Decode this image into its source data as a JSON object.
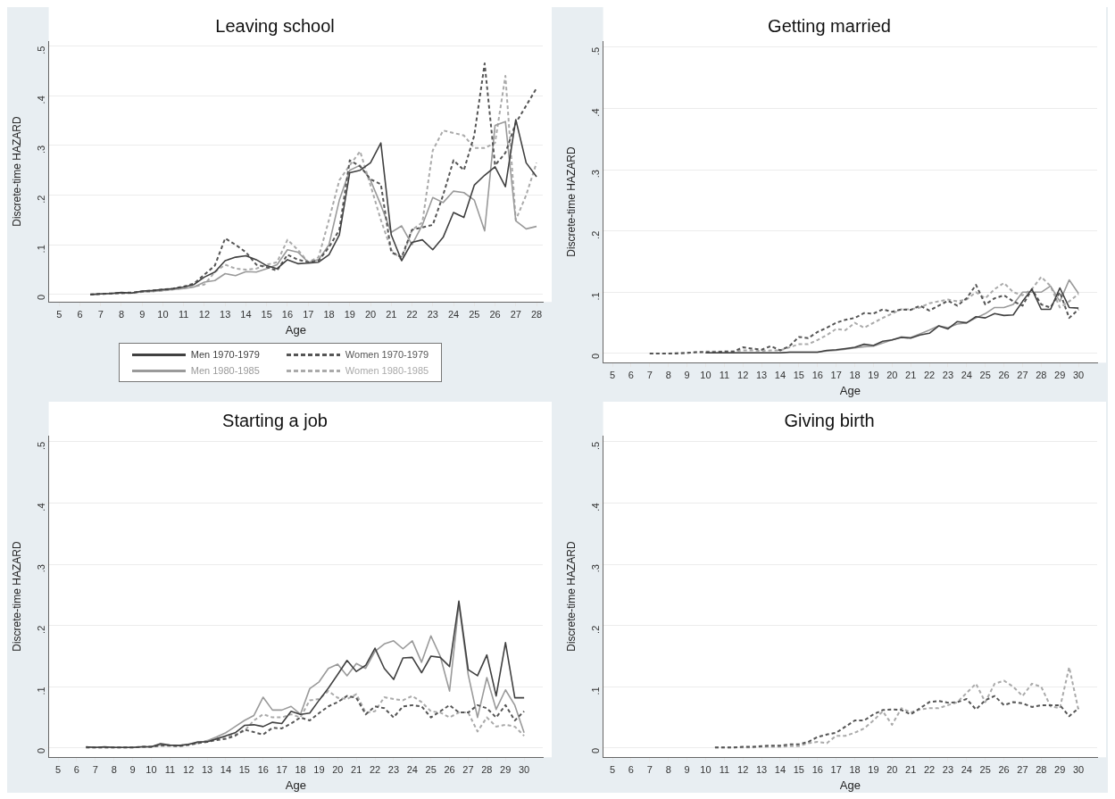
{
  "chart_data": [
    {
      "type": "line",
      "title": "Leaving school",
      "xlabel": "Age",
      "ylabel": "Discrete-time HAZARD",
      "xlim": [
        4.5,
        28.3
      ],
      "xticks": [
        5,
        6,
        7,
        8,
        9,
        10,
        11,
        12,
        13,
        14,
        15,
        16,
        17,
        18,
        19,
        20,
        21,
        22,
        23,
        24,
        25,
        26,
        27,
        28
      ],
      "ylim": [
        -0.015,
        0.51
      ],
      "yticks": [
        {
          "value": 0,
          "label": "0"
        },
        {
          "value": 0.1,
          "label": ".1"
        },
        {
          "value": 0.2,
          "label": ".2"
        },
        {
          "value": 0.3,
          "label": ".3"
        },
        {
          "value": 0.4,
          "label": ".4"
        },
        {
          "value": 0.5,
          "label": ".5"
        }
      ],
      "grid": "y",
      "legend": "bottom",
      "x": [
        6.5,
        7,
        7.5,
        8,
        8.5,
        9,
        9.5,
        10,
        10.5,
        11,
        11.5,
        12,
        12.5,
        13,
        13.5,
        14,
        14.5,
        15,
        15.5,
        16,
        16.5,
        17,
        17.5,
        18,
        18.5,
        19,
        19.5,
        20,
        20.5,
        21,
        21.5,
        22,
        22.5,
        23,
        23.5,
        24,
        24.5,
        25,
        25.5,
        26,
        26.5,
        27,
        27.5,
        28
      ],
      "series": [
        {
          "name": "Men 1970-1979",
          "color": "#404040",
          "line_style": "solid",
          "values": [
            0,
            0.001,
            0.002,
            0.004,
            0.003,
            0.007,
            0.008,
            0.01,
            0.012,
            0.015,
            0.02,
            0.035,
            0.045,
            0.068,
            0.075,
            0.078,
            0.07,
            0.058,
            0.052,
            0.07,
            0.062,
            0.063,
            0.065,
            0.08,
            0.12,
            0.245,
            0.25,
            0.265,
            0.305,
            0.12,
            0.068,
            0.105,
            0.11,
            0.09,
            0.115,
            0.165,
            0.155,
            0.22,
            0.24,
            0.257,
            0.217,
            0.352,
            0.265,
            0.237
          ]
        },
        {
          "name": "Women 1970-1979",
          "color": "#555555",
          "line_style": "dashed",
          "values": [
            0,
            0.001,
            0.002,
            0.003,
            0.004,
            0.006,
            0.008,
            0.01,
            0.012,
            0.016,
            0.022,
            0.04,
            0.058,
            0.113,
            0.1,
            0.085,
            0.06,
            0.055,
            0.048,
            0.08,
            0.07,
            0.065,
            0.068,
            0.095,
            0.13,
            0.27,
            0.258,
            0.232,
            0.222,
            0.085,
            0.075,
            0.13,
            0.135,
            0.14,
            0.2,
            0.27,
            0.25,
            0.32,
            0.465,
            0.26,
            0.285,
            0.345,
            0.38,
            0.415
          ]
        },
        {
          "name": "Men 1980-1985",
          "color": "#9a9a9a",
          "line_style": "solid",
          "values": [
            0,
            0.001,
            0.002,
            0.003,
            0.003,
            0.005,
            0.006,
            0.008,
            0.01,
            0.012,
            0.015,
            0.025,
            0.028,
            0.042,
            0.038,
            0.046,
            0.045,
            0.052,
            0.06,
            0.09,
            0.085,
            0.065,
            0.07,
            0.1,
            0.19,
            0.25,
            0.26,
            0.23,
            0.18,
            0.125,
            0.138,
            0.1,
            0.14,
            0.195,
            0.185,
            0.208,
            0.205,
            0.19,
            0.128,
            0.34,
            0.348,
            0.148,
            0.132,
            0.137
          ]
        },
        {
          "name": "Women 1980-1985",
          "color": "#aaaaaa",
          "line_style": "dashed",
          "values": [
            0,
            0.001,
            0.002,
            0.002,
            0.003,
            0.005,
            0.006,
            0.008,
            0.01,
            0.013,
            0.016,
            0.02,
            0.045,
            0.06,
            0.052,
            0.05,
            0.052,
            0.06,
            0.065,
            0.11,
            0.09,
            0.065,
            0.075,
            0.15,
            0.23,
            0.26,
            0.288,
            0.22,
            0.15,
            0.09,
            0.07,
            0.13,
            0.145,
            0.29,
            0.33,
            0.325,
            0.32,
            0.295,
            0.295,
            0.305,
            0.44,
            0.15,
            0.2,
            0.265
          ]
        }
      ]
    },
    {
      "type": "line",
      "title": "Getting married",
      "xlabel": "Age",
      "ylabel": "Discrete-time HAZARD",
      "xlim": [
        4.5,
        31
      ],
      "xticks": [
        5,
        6,
        7,
        8,
        9,
        10,
        11,
        12,
        13,
        14,
        15,
        16,
        17,
        18,
        19,
        20,
        21,
        22,
        23,
        24,
        25,
        26,
        27,
        28,
        29,
        30
      ],
      "ylim": [
        -0.015,
        0.51
      ],
      "yticks": [
        {
          "value": 0,
          "label": "0"
        },
        {
          "value": 0.1,
          "label": ".1"
        },
        {
          "value": 0.2,
          "label": ".2"
        },
        {
          "value": 0.3,
          "label": ".3"
        },
        {
          "value": 0.4,
          "label": ".4"
        },
        {
          "value": 0.5,
          "label": ".5"
        }
      ],
      "grid": "y",
      "x": [
        7,
        7.5,
        8,
        8.5,
        9,
        9.5,
        10,
        10.5,
        11,
        11.5,
        12,
        12.5,
        13,
        13.5,
        14,
        14.5,
        15,
        15.5,
        16,
        16.5,
        17,
        17.5,
        18,
        18.5,
        19,
        19.5,
        20,
        20.5,
        21,
        21.5,
        22,
        22.5,
        23,
        23.5,
        24,
        24.5,
        25,
        25.5,
        26,
        26.5,
        27,
        27.5,
        28,
        28.5,
        29,
        29.5,
        30
      ],
      "series": [
        {
          "color": "#404040",
          "line_style": "solid",
          "values": [
            null,
            null,
            null,
            null,
            null,
            null,
            0.001,
            0.001,
            0.001,
            0.001,
            0.001,
            0.001,
            0.001,
            0.001,
            0.001,
            0.002,
            0.002,
            0.002,
            0.002,
            0.005,
            0.006,
            0.008,
            0.01,
            0.015,
            0.013,
            0.02,
            0.022,
            0.026,
            0.025,
            0.03,
            0.033,
            0.045,
            0.04,
            0.052,
            0.05,
            0.06,
            0.058,
            0.065,
            0.062,
            0.063,
            0.085,
            0.105,
            0.072,
            0.072,
            0.107,
            0.075,
            0.074
          ]
        },
        {
          "color": "#555555",
          "line_style": "dashed",
          "values": [
            0,
            0,
            0,
            0,
            0.001,
            0.002,
            0.002,
            0.002,
            0.003,
            0.003,
            0.01,
            0.008,
            0.006,
            0.012,
            0.005,
            0.012,
            0.027,
            0.025,
            0.035,
            0.042,
            0.05,
            0.055,
            0.058,
            0.066,
            0.065,
            0.072,
            0.068,
            0.072,
            0.071,
            0.078,
            0.07,
            0.078,
            0.086,
            0.078,
            0.09,
            0.112,
            0.08,
            0.09,
            0.095,
            0.085,
            0.078,
            0.105,
            0.08,
            0.075,
            0.1,
            0.058,
            0.072
          ]
        },
        {
          "color": "#9a9a9a",
          "line_style": "solid",
          "values": [
            null,
            null,
            null,
            null,
            null,
            null,
            0.001,
            0.001,
            0.001,
            0.001,
            0.001,
            0.001,
            0.001,
            0.001,
            0.001,
            0.002,
            0.002,
            0.002,
            0.002,
            0.004,
            0.005,
            0.007,
            0.009,
            0.011,
            0.012,
            0.017,
            0.022,
            0.027,
            0.026,
            0.032,
            0.038,
            0.045,
            0.042,
            0.048,
            0.05,
            0.058,
            0.065,
            0.075,
            0.075,
            0.08,
            0.1,
            0.1,
            0.1,
            0.11,
            0.085,
            0.12,
            0.098
          ]
        },
        {
          "color": "#aaaaaa",
          "line_style": "dashed",
          "values": [
            0,
            0,
            0,
            0.001,
            0.001,
            0.002,
            0.003,
            0.003,
            0.003,
            0.003,
            0.005,
            0.005,
            0.004,
            0.005,
            0.005,
            0.01,
            0.015,
            0.015,
            0.022,
            0.03,
            0.04,
            0.038,
            0.05,
            0.042,
            0.05,
            0.058,
            0.065,
            0.072,
            0.072,
            0.075,
            0.082,
            0.085,
            0.088,
            0.085,
            0.088,
            0.1,
            0.09,
            0.105,
            0.115,
            0.1,
            0.095,
            0.105,
            0.125,
            0.11,
            0.075,
            0.085,
            0.097
          ]
        }
      ]
    },
    {
      "type": "line",
      "title": "Starting a job",
      "xlabel": "Age",
      "ylabel": "Discrete-time HAZARD",
      "xlim": [
        4.5,
        31
      ],
      "xticks": [
        5,
        6,
        7,
        8,
        9,
        10,
        11,
        12,
        13,
        14,
        15,
        16,
        17,
        18,
        19,
        20,
        21,
        22,
        23,
        24,
        25,
        26,
        27,
        28,
        29,
        30
      ],
      "ylim": [
        -0.015,
        0.51
      ],
      "yticks": [
        {
          "value": 0,
          "label": "0"
        },
        {
          "value": 0.1,
          "label": ".1"
        },
        {
          "value": 0.2,
          "label": ".2"
        },
        {
          "value": 0.3,
          "label": ".3"
        },
        {
          "value": 0.4,
          "label": ".4"
        },
        {
          "value": 0.5,
          "label": ".5"
        }
      ],
      "grid": "y",
      "x": [
        6.5,
        7,
        7.5,
        8,
        8.5,
        9,
        9.5,
        10,
        10.5,
        11,
        11.5,
        12,
        12.5,
        13,
        13.5,
        14,
        14.5,
        15,
        15.5,
        16,
        16.5,
        17,
        17.5,
        18,
        18.5,
        19,
        19.5,
        20,
        20.5,
        21,
        21.5,
        22,
        22.5,
        23,
        23.5,
        24,
        24.5,
        25,
        25.5,
        26,
        26.5,
        27,
        27.5,
        28,
        28.5,
        29,
        29.5,
        30
      ],
      "series": [
        {
          "color": "#404040",
          "line_style": "solid",
          "values": [
            0.002,
            0.001,
            0.002,
            0.001,
            0.001,
            0.001,
            0.002,
            0.002,
            0.007,
            0.005,
            0.004,
            0.006,
            0.01,
            0.01,
            0.015,
            0.02,
            0.025,
            0.037,
            0.038,
            0.035,
            0.042,
            0.04,
            0.06,
            0.055,
            0.057,
            0.078,
            0.098,
            0.12,
            0.143,
            0.125,
            0.135,
            0.163,
            0.13,
            0.112,
            0.147,
            0.148,
            0.123,
            0.15,
            0.148,
            0.133,
            0.24,
            0.128,
            0.118,
            0.152,
            0.085,
            0.172,
            0.082,
            0.082
          ]
        },
        {
          "color": "#555555",
          "line_style": "dashed",
          "values": [
            0.001,
            0.001,
            0.001,
            0.001,
            0.001,
            0.001,
            0.002,
            0.002,
            0.004,
            0.004,
            0.003,
            0.005,
            0.008,
            0.01,
            0.013,
            0.015,
            0.02,
            0.03,
            0.026,
            0.022,
            0.033,
            0.032,
            0.04,
            0.05,
            0.045,
            0.057,
            0.068,
            0.075,
            0.085,
            0.082,
            0.055,
            0.068,
            0.065,
            0.05,
            0.068,
            0.07,
            0.068,
            0.05,
            0.06,
            0.07,
            0.058,
            0.058,
            0.07,
            0.065,
            0.05,
            0.07,
            0.045,
            0.06
          ]
        },
        {
          "color": "#9a9a9a",
          "line_style": "solid",
          "values": [
            0.001,
            0.001,
            0.001,
            0.001,
            0.001,
            0.001,
            0.002,
            0.002,
            0.005,
            0.004,
            0.004,
            0.006,
            0.008,
            0.012,
            0.018,
            0.025,
            0.035,
            0.045,
            0.053,
            0.083,
            0.062,
            0.062,
            0.068,
            0.055,
            0.097,
            0.108,
            0.13,
            0.137,
            0.118,
            0.138,
            0.13,
            0.158,
            0.17,
            0.175,
            0.162,
            0.175,
            0.14,
            0.183,
            0.15,
            0.093,
            0.235,
            0.12,
            0.05,
            0.115,
            0.063,
            0.095,
            0.07,
            0.025
          ]
        },
        {
          "color": "#aaaaaa",
          "line_style": "dashed",
          "values": [
            0.001,
            0.001,
            0.001,
            0.001,
            0.001,
            0.001,
            0.002,
            0.002,
            0.005,
            0.004,
            0.004,
            0.006,
            0.008,
            0.012,
            0.015,
            0.018,
            0.022,
            0.028,
            0.045,
            0.055,
            0.05,
            0.05,
            0.055,
            0.05,
            0.078,
            0.08,
            0.093,
            0.082,
            0.08,
            0.088,
            0.058,
            0.06,
            0.083,
            0.08,
            0.078,
            0.085,
            0.075,
            0.06,
            0.058,
            0.05,
            0.058,
            0.058,
            0.027,
            0.05,
            0.035,
            0.038,
            0.035,
            0.02
          ]
        }
      ]
    },
    {
      "type": "line",
      "title": "Giving birth",
      "xlabel": "Age",
      "ylabel": "Discrete-time HAZARD",
      "xlim": [
        4.5,
        31
      ],
      "xticks": [
        5,
        6,
        7,
        8,
        9,
        10,
        11,
        12,
        13,
        14,
        15,
        16,
        17,
        18,
        19,
        20,
        21,
        22,
        23,
        24,
        25,
        26,
        27,
        28,
        29,
        30
      ],
      "ylim": [
        -0.015,
        0.51
      ],
      "yticks": [
        {
          "value": 0,
          "label": "0"
        },
        {
          "value": 0.1,
          "label": ".1"
        },
        {
          "value": 0.2,
          "label": ".2"
        },
        {
          "value": 0.3,
          "label": ".3"
        },
        {
          "value": 0.4,
          "label": ".4"
        },
        {
          "value": 0.5,
          "label": ".5"
        }
      ],
      "grid": "y",
      "x": [
        10.5,
        11,
        11.5,
        12,
        12.5,
        13,
        13.5,
        14,
        14.5,
        15,
        15.5,
        16,
        16.5,
        17,
        17.5,
        18,
        18.5,
        19,
        19.5,
        20,
        20.5,
        21,
        21.5,
        22,
        22.5,
        23,
        23.5,
        24,
        24.5,
        25,
        25.5,
        26,
        26.5,
        27,
        27.5,
        28,
        28.5,
        29,
        29.5,
        30
      ],
      "series": [
        {
          "color": "#555555",
          "line_style": "dashed",
          "values": [
            0.001,
            0.001,
            0.001,
            0.002,
            0.002,
            0.003,
            0.004,
            0.004,
            0.006,
            0.006,
            0.01,
            0.018,
            0.022,
            0.025,
            0.035,
            0.045,
            0.045,
            0.055,
            0.062,
            0.063,
            0.062,
            0.055,
            0.065,
            0.075,
            0.077,
            0.074,
            0.075,
            0.08,
            0.063,
            0.078,
            0.085,
            0.07,
            0.075,
            0.073,
            0.067,
            0.07,
            0.07,
            0.07,
            0.052,
            0.065
          ]
        },
        {
          "color": "#aaaaaa",
          "line_style": "dashed",
          "values": [
            0.001,
            0.001,
            0.001,
            0.001,
            0.001,
            0.002,
            0.002,
            0.002,
            0.003,
            0.003,
            0.008,
            0.01,
            0.008,
            0.02,
            0.02,
            0.025,
            0.032,
            0.045,
            0.06,
            0.038,
            0.065,
            0.058,
            0.063,
            0.065,
            0.065,
            0.07,
            0.075,
            0.09,
            0.105,
            0.075,
            0.105,
            0.11,
            0.1,
            0.085,
            0.105,
            0.1,
            0.068,
            0.065,
            0.132,
            0.062
          ]
        }
      ]
    }
  ]
}
